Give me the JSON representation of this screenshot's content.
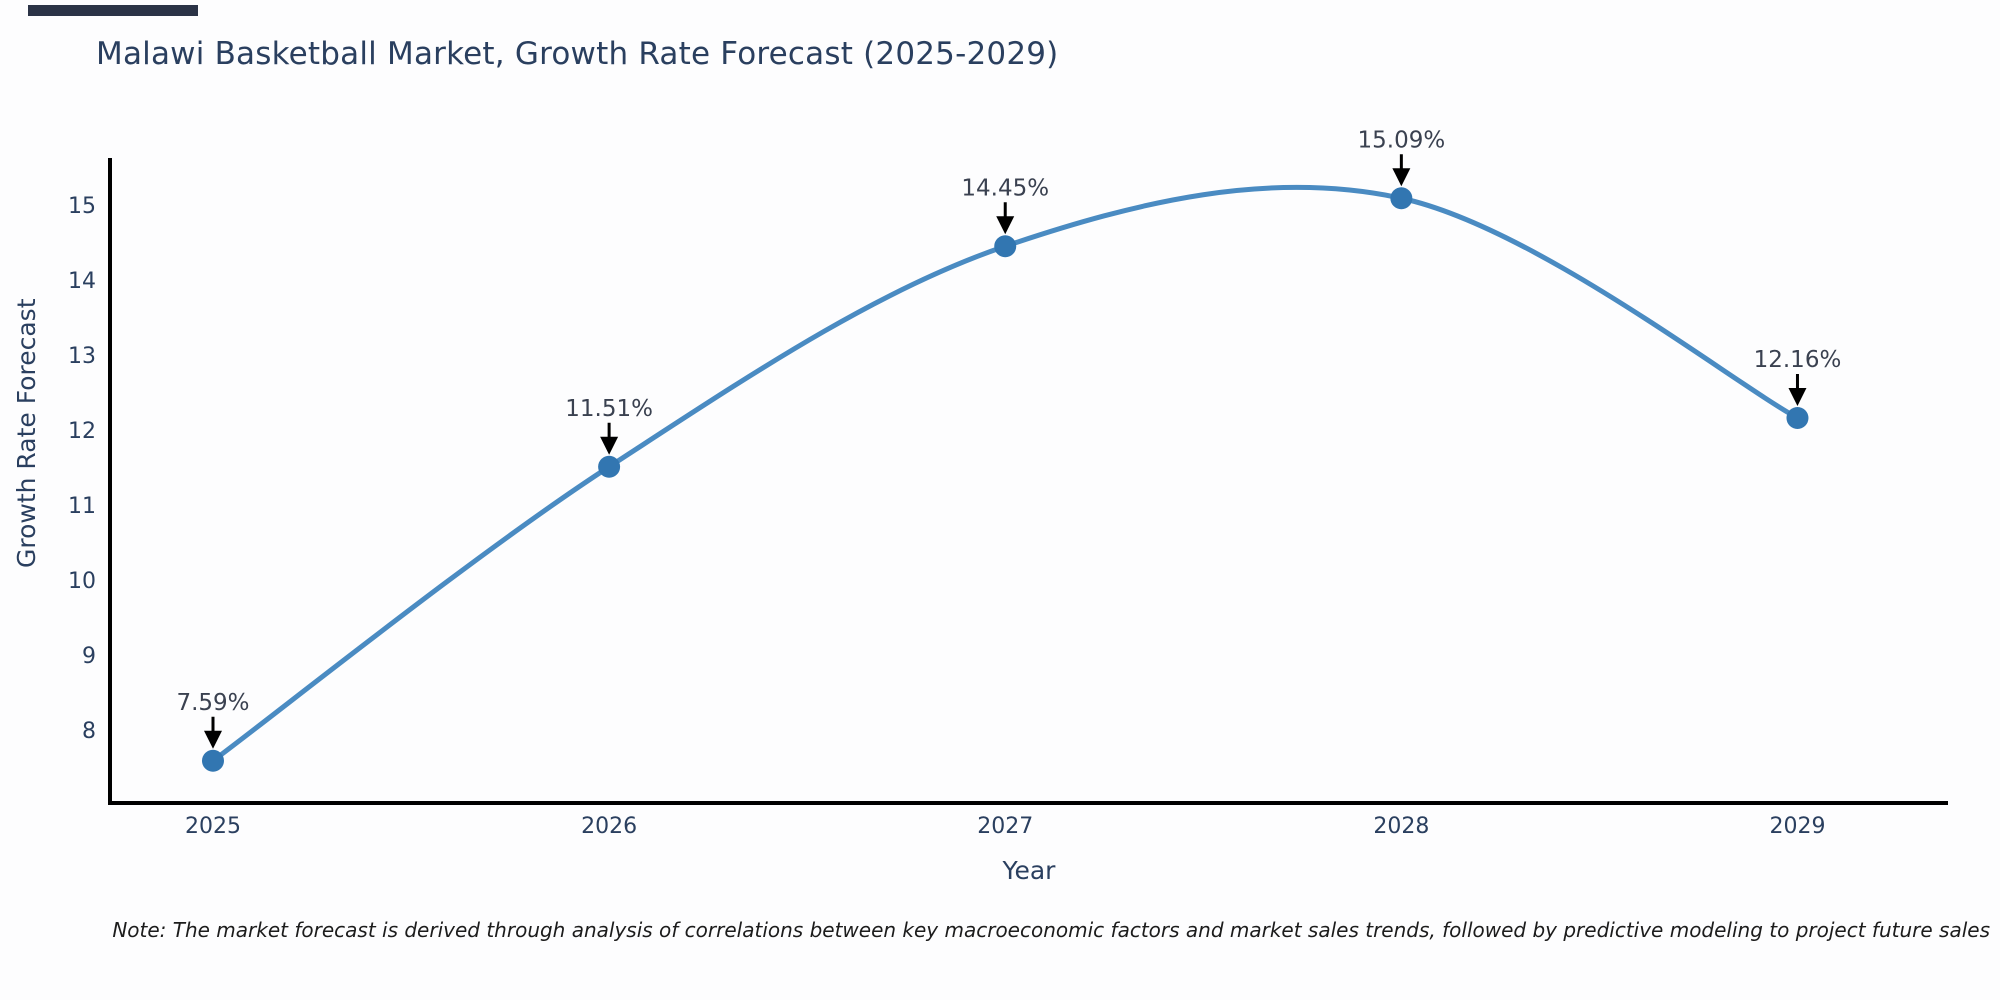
{
  "chart": {
    "title": "Malawi Basketball Market, Growth Rate Forecast (2025-2029)",
    "ylabel": "Growth Rate Forecast",
    "xlabel": "Year",
    "note": "Note: The market forecast is derived through analysis of correlations between key macroeconomic factors and market sales trends, followed by predictive modeling to project future sales"
  },
  "chart_data": {
    "type": "line",
    "line_shape": "spline",
    "title": "Malawi Basketball Market, Growth Rate Forecast (2025-2029)",
    "xlabel": "Year",
    "ylabel": "Growth Rate Forecast",
    "x": [
      2025,
      2026,
      2027,
      2028,
      2029
    ],
    "values": [
      7.59,
      11.51,
      14.45,
      15.09,
      12.16
    ],
    "point_labels": [
      "7.59%",
      "11.51%",
      "14.45%",
      "15.09%",
      "12.16%"
    ],
    "annotation_style": "black-down-arrow-to-point",
    "yticks": [
      8,
      9,
      10,
      11,
      12,
      13,
      14,
      15
    ],
    "xticks": [
      2025,
      2026,
      2027,
      2028,
      2029
    ],
    "ylim": [
      7.0,
      15.6
    ],
    "xlim": [
      2024.74,
      2029.38
    ],
    "grid": false,
    "legend": "none",
    "colors": {
      "line": "#4a8bc2",
      "marker": "#3276b1",
      "axis": "#000000",
      "tick_text": "#2a3f5f",
      "annotation_text": "#3a4150",
      "arrow": "#000000"
    }
  }
}
